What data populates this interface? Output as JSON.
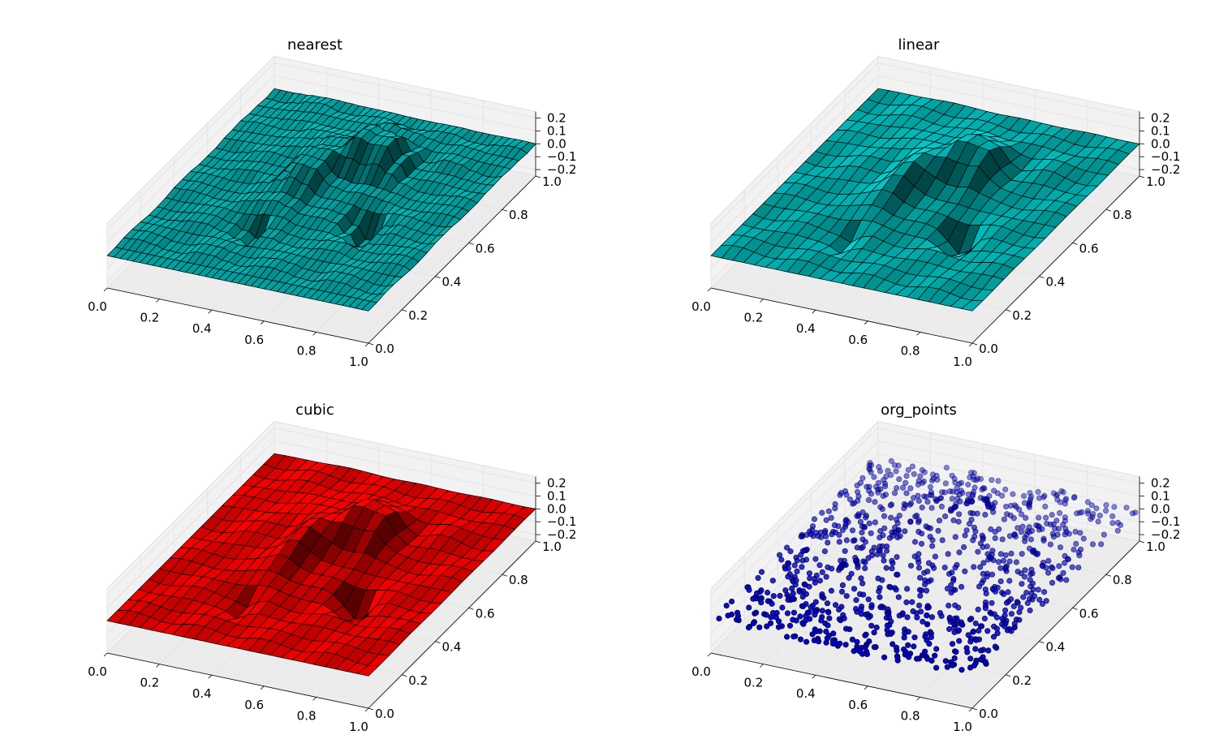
{
  "chart_data": [
    {
      "type": "surface",
      "title": "nearest",
      "method": "nearest",
      "color": "#00bcbc",
      "xticks": [
        "0.0",
        "0.2",
        "0.4",
        "0.6",
        "0.8",
        "1.0"
      ],
      "yticks": [
        "0.0",
        "0.2",
        "0.4",
        "0.6",
        "0.8",
        "1.0"
      ],
      "zticks": [
        "−0.2",
        "−0.1",
        "0.0",
        "0.1",
        "0.2"
      ],
      "xlim": [
        0,
        1
      ],
      "ylim": [
        0,
        1
      ],
      "zlim": [
        -0.25,
        0.25
      ],
      "grid": true
    },
    {
      "type": "surface",
      "title": "linear",
      "method": "linear",
      "color": "#00bcbc",
      "xticks": [
        "0.0",
        "0.2",
        "0.4",
        "0.6",
        "0.8",
        "1.0"
      ],
      "yticks": [
        "0.0",
        "0.2",
        "0.4",
        "0.6",
        "0.8",
        "1.0"
      ],
      "zticks": [
        "−0.2",
        "−0.1",
        "0.0",
        "0.1",
        "0.2"
      ],
      "xlim": [
        0,
        1
      ],
      "ylim": [
        0,
        1
      ],
      "zlim": [
        -0.25,
        0.25
      ],
      "grid": true
    },
    {
      "type": "surface",
      "title": "cubic",
      "method": "cubic",
      "color": "#ff0000",
      "xticks": [
        "0.0",
        "0.2",
        "0.4",
        "0.6",
        "0.8",
        "1.0"
      ],
      "yticks": [
        "0.0",
        "0.2",
        "0.4",
        "0.6",
        "0.8",
        "1.0"
      ],
      "zticks": [
        "−0.2",
        "−0.1",
        "0.0",
        "0.1",
        "0.2"
      ],
      "xlim": [
        0,
        1
      ],
      "ylim": [
        0,
        1
      ],
      "zlim": [
        -0.25,
        0.25
      ],
      "grid": true
    },
    {
      "type": "scatter",
      "title": "org_points",
      "method": "points",
      "color": "#0000cc",
      "point_count": 1000,
      "xticks": [
        "0.0",
        "0.2",
        "0.4",
        "0.6",
        "0.8",
        "1.0"
      ],
      "yticks": [
        "0.0",
        "0.2",
        "0.4",
        "0.6",
        "0.8",
        "1.0"
      ],
      "zticks": [
        "−0.2",
        "−0.1",
        "0.0",
        "0.1",
        "0.2"
      ],
      "xlim": [
        0,
        1
      ],
      "ylim": [
        0,
        1
      ],
      "zlim": [
        -0.25,
        0.25
      ],
      "grid": true
    }
  ]
}
